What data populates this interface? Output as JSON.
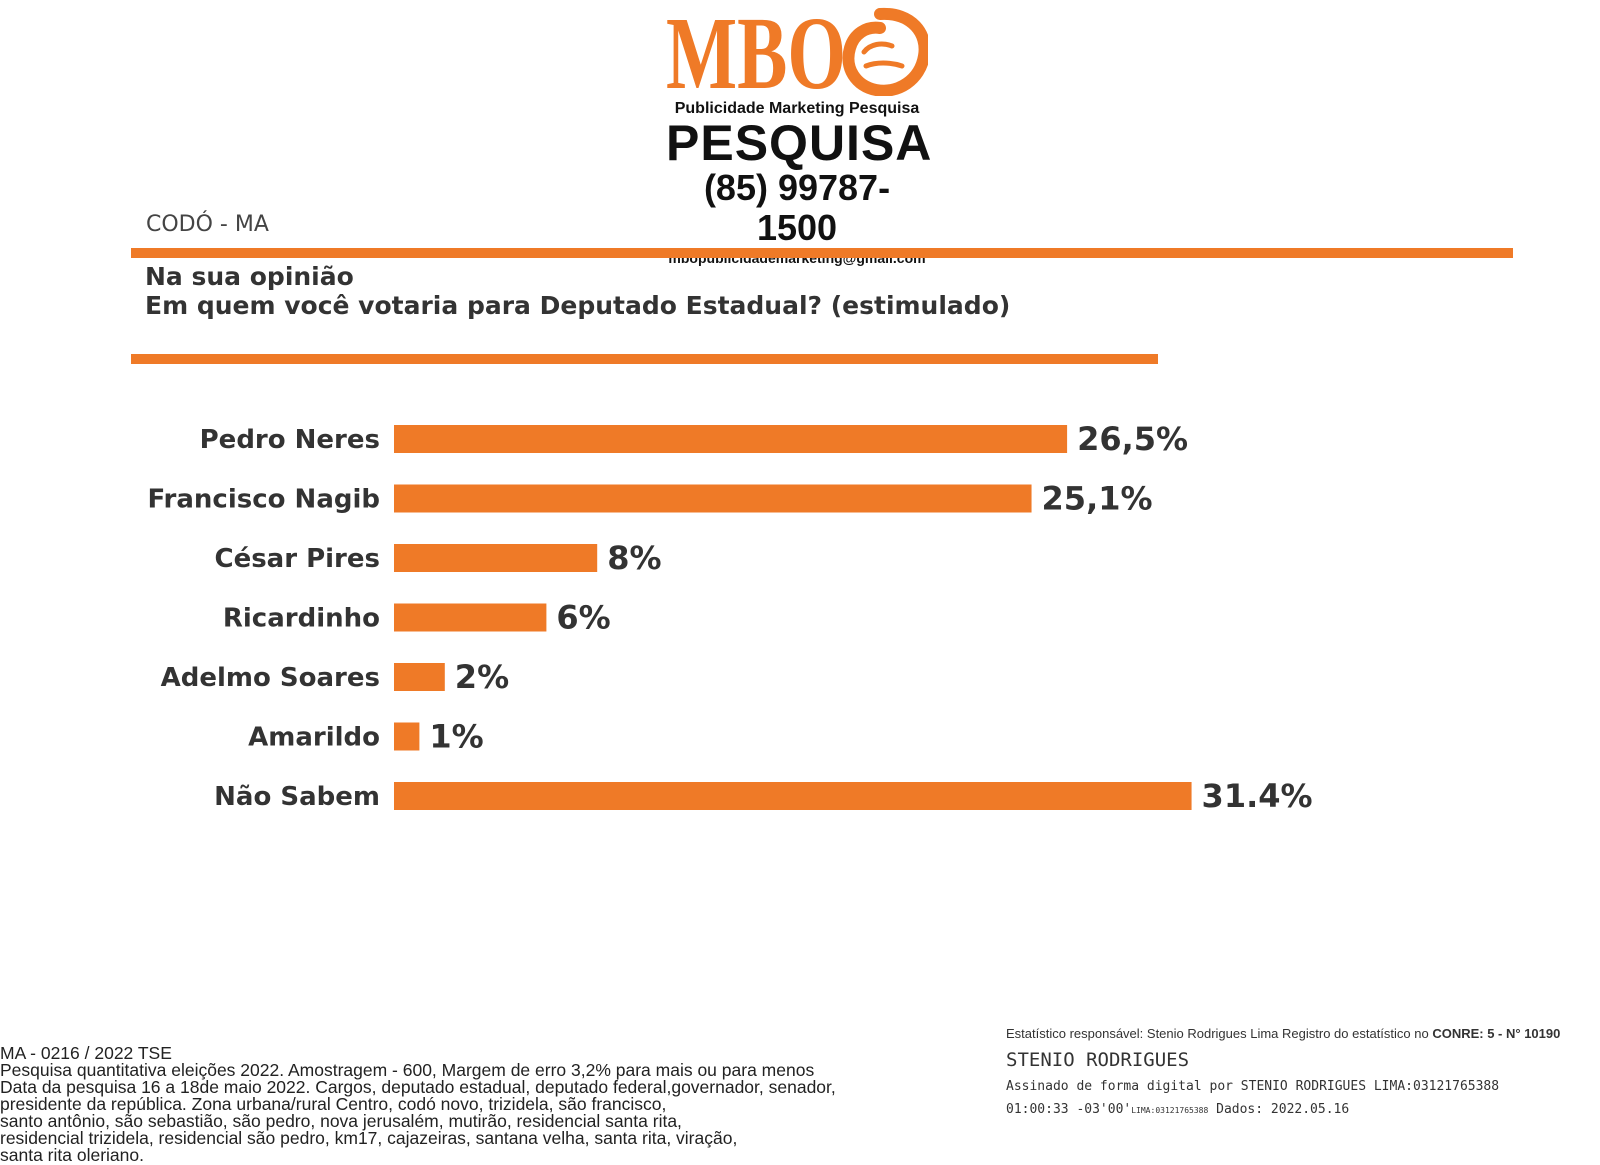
{
  "brand": {
    "logo_letters": "MBO",
    "tagline": "Publicidade Marketing Pesquisa",
    "word": "PESQUISA",
    "phone": "(85) 99787-1500",
    "email": "mbopublicidademarketing@gmail.com",
    "accent_color": "#ef7a27"
  },
  "header": {
    "location": "CODÓ - MA",
    "question_line1": "Na sua opinião",
    "question_line2": "Em quem você votaria para Deputado Estadual? (estimulado)"
  },
  "chart_data": {
    "type": "bar",
    "orientation": "horizontal",
    "categories": [
      "Pedro Neres",
      "Francisco Nagib",
      "César Pires",
      "Ricardinho",
      "Adelmo Soares",
      "Amarildo",
      "Não Sabem"
    ],
    "values": [
      26.5,
      25.1,
      8,
      6,
      2,
      1,
      31.4
    ],
    "value_labels": [
      "26,5%",
      "25,1%",
      "8%",
      "6%",
      "2%",
      "1%",
      "31.4%"
    ],
    "bar_color": "#ef7a27",
    "grid": false
  },
  "footer": {
    "lines": [
      "MA - 0216 / 2022 TSE",
      "Pesquisa quantitativa eleições 2022. Amostragem - 600, Margem de erro 3,2% para mais ou para menos",
      "Data da pesquisa 16 a 18de maio 2022. Cargos, deputado estadual, deputado federal,governador, senador,",
      "presidente da república. Zona urbana/rural Centro, codó novo, trizidela, são francisco,",
      "santo antônio, são sebastião, são pedro, nova jerusalém, mutirão, residencial santa rita,",
      "residencial trizidela, residencial são pedro, km17, cajazeiras, santana velha, santa rita, viração,",
      "santa rita oleriano."
    ]
  },
  "signature": {
    "line1": "Estatístico responsável: Stenio Rodrigues Lima Registro do estatístico no ",
    "line1_bold": "CONRE: 5 - N° 10190",
    "name": "STENIO RODRIGUES",
    "line3": "Assinado de forma digital por STENIO RODRIGUES LIMA:03121765388",
    "time": "01:00:33 -03'00'",
    "small_id": "LIMA:03121765388",
    "dados": "Dados: 2022.05.16"
  }
}
